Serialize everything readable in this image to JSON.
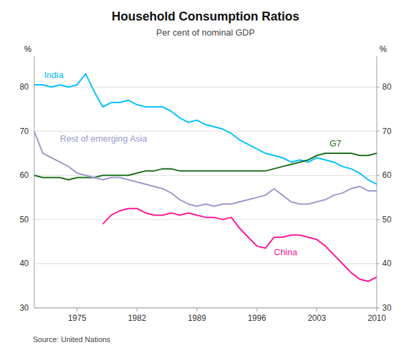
{
  "chart_data": {
    "type": "line",
    "title": "Household Consumption Ratios",
    "subtitle": "Per cent of nominal GDP",
    "source": "Source: United Nations",
    "ylabel": "%",
    "y2label": "%",
    "x": [
      1970,
      1971,
      1972,
      1973,
      1974,
      1975,
      1976,
      1977,
      1978,
      1979,
      1980,
      1981,
      1982,
      1983,
      1984,
      1985,
      1986,
      1987,
      1988,
      1989,
      1990,
      1991,
      1992,
      1993,
      1994,
      1995,
      1996,
      1997,
      1998,
      1999,
      2000,
      2001,
      2002,
      2003,
      2004,
      2005,
      2006,
      2007,
      2008,
      2009,
      2010
    ],
    "xlim": [
      1970,
      2010
    ],
    "xticks": [
      1975,
      1982,
      1989,
      1996,
      2003,
      2010
    ],
    "ylim": [
      30,
      87
    ],
    "yticks": [
      30,
      40,
      50,
      60,
      70,
      80
    ],
    "y2lim": [
      30,
      87
    ],
    "y2ticks": [
      30,
      40,
      50,
      60,
      70,
      80
    ],
    "grid": true,
    "series": [
      {
        "name": "India",
        "color": "#00bfff",
        "values": [
          80.5,
          80.5,
          80.0,
          80.5,
          80.0,
          80.5,
          83.0,
          79.0,
          75.5,
          76.5,
          76.5,
          77.0,
          76.0,
          75.5,
          75.5,
          75.5,
          74.5,
          73.0,
          72.0,
          72.5,
          71.5,
          71.0,
          70.5,
          69.5,
          68.0,
          67.0,
          66.0,
          65.0,
          64.5,
          64.0,
          63.0,
          63.5,
          63.0,
          64.0,
          63.5,
          63.0,
          62.0,
          61.5,
          60.5,
          59.0,
          58.0
        ]
      },
      {
        "name": "G7",
        "color": "#1a6b1a",
        "values": [
          60.0,
          59.5,
          59.5,
          59.5,
          59.0,
          59.5,
          59.5,
          59.5,
          60.0,
          60.0,
          60.0,
          60.0,
          60.5,
          61.0,
          61.0,
          61.5,
          61.5,
          61.0,
          61.0,
          61.0,
          61.0,
          61.0,
          61.0,
          61.0,
          61.0,
          61.0,
          61.0,
          61.0,
          61.5,
          62.0,
          62.5,
          63.0,
          63.5,
          64.5,
          65.0,
          65.0,
          65.0,
          65.0,
          64.5,
          64.5,
          65.0
        ]
      },
      {
        "name": "Rest of emerging Asia",
        "color": "#9999cc",
        "values": [
          70.0,
          65.0,
          64.0,
          63.0,
          62.0,
          60.5,
          60.0,
          59.5,
          59.0,
          59.5,
          59.5,
          59.0,
          58.5,
          58.0,
          57.5,
          57.0,
          56.0,
          54.5,
          53.5,
          53.0,
          53.5,
          53.0,
          53.5,
          53.5,
          54.0,
          54.5,
          55.0,
          55.5,
          57.0,
          55.5,
          54.0,
          53.5,
          53.5,
          54.0,
          54.5,
          55.5,
          56.0,
          57.0,
          57.5,
          56.5,
          56.5
        ]
      },
      {
        "name": "China",
        "color": "#ff1493",
        "values": [
          null,
          null,
          null,
          null,
          null,
          null,
          null,
          null,
          49.0,
          51.0,
          52.0,
          52.5,
          52.5,
          51.5,
          51.0,
          51.0,
          51.5,
          51.0,
          51.5,
          51.0,
          50.5,
          50.5,
          50.0,
          50.5,
          48.0,
          46.0,
          44.0,
          43.5,
          46.0,
          46.0,
          46.5,
          46.5,
          46.0,
          45.5,
          44.0,
          42.0,
          40.0,
          38.0,
          36.5,
          36.0,
          37.0
        ]
      }
    ]
  }
}
